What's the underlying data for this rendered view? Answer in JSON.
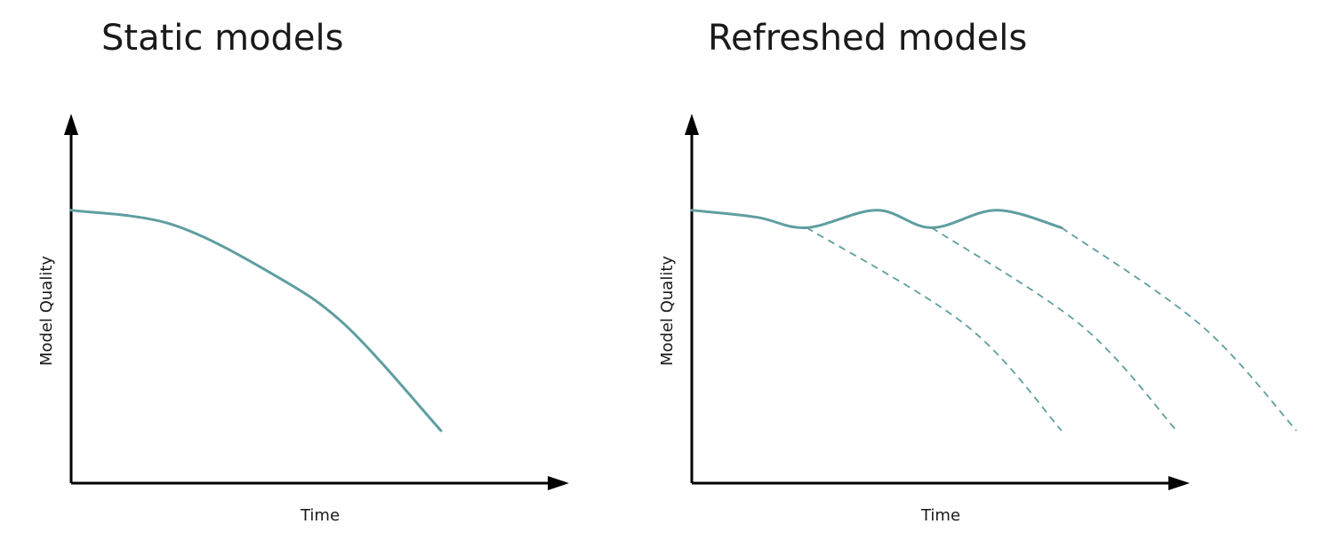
{
  "chart_data": [
    {
      "type": "line",
      "title": "Static models",
      "xlabel": "Time",
      "ylabel": "Model Quality",
      "grid": false,
      "series": [
        {
          "style": "solid",
          "points": [
            [
              0,
              0.78
            ],
            [
              0.2,
              0.74
            ],
            [
              0.4,
              0.6
            ],
            [
              0.55,
              0.45
            ],
            [
              0.74,
              0.15
            ]
          ]
        }
      ]
    },
    {
      "type": "line",
      "title": "Refreshed models",
      "xlabel": "Time",
      "ylabel": "Model Quality",
      "grid": false,
      "series": [
        {
          "style": "solid",
          "points": [
            [
              0,
              0.78
            ],
            [
              0.13,
              0.76
            ],
            [
              0.23,
              0.73
            ],
            [
              0.37,
              0.78
            ],
            [
              0.48,
              0.73
            ],
            [
              0.61,
              0.78
            ],
            [
              0.74,
              0.73
            ]
          ]
        },
        {
          "style": "dashed",
          "points": [
            [
              0.23,
              0.73
            ],
            [
              0.55,
              0.45
            ],
            [
              0.74,
              0.15
            ]
          ]
        },
        {
          "style": "dashed",
          "points": [
            [
              0.48,
              0.73
            ],
            [
              0.78,
              0.45
            ],
            [
              0.97,
              0.15
            ]
          ]
        },
        {
          "style": "dashed",
          "points": [
            [
              0.74,
              0.73
            ],
            [
              1.02,
              0.45
            ],
            [
              1.21,
              0.15
            ]
          ]
        }
      ]
    }
  ]
}
